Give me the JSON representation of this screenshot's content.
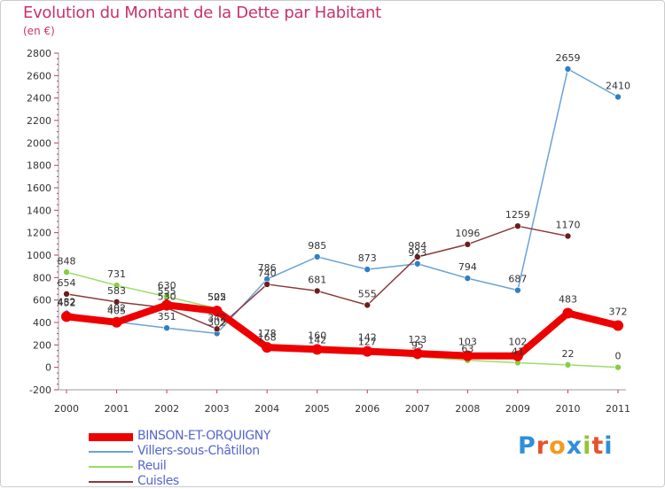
{
  "header": {
    "title": "Evolution du Montant de la Dette par Habitant",
    "unit": "(en €)"
  },
  "colors": {
    "title": "#c8336b",
    "axis_text": "#333333",
    "grid": "#dddddd",
    "legend_text": "#5566cc"
  },
  "logo": {
    "letters": [
      "P",
      "r",
      "o",
      "x",
      "i",
      "t",
      "i"
    ],
    "colors": [
      "#2f8fd8",
      "#e5522e",
      "#f39a1f",
      "#2f8fd8",
      "#93c43d",
      "#e5522e",
      "#2f8fd8"
    ]
  },
  "chart_data": {
    "type": "line",
    "title": "Evolution du Montant de la Dette par Habitant",
    "ylabel": "(en €)",
    "xlabel": "",
    "x": [
      2000,
      2001,
      2002,
      2003,
      2004,
      2005,
      2006,
      2007,
      2008,
      2009,
      2010,
      2011
    ],
    "ylim": [
      -200,
      2800
    ],
    "yticks": [
      -200,
      0,
      200,
      400,
      600,
      800,
      1000,
      1200,
      1400,
      1600,
      1800,
      2000,
      2200,
      2400,
      2600,
      2800
    ],
    "grid": false,
    "legend_position": "bottom-left",
    "series": [
      {
        "name": "BINSON-ET-ORQUIGNY",
        "color": "#ee0000",
        "marker": "#ee0000",
        "width": 8,
        "values": [
          452,
          402,
          555,
          502,
          178,
          160,
          142,
          123,
          103,
          102,
          483,
          372
        ]
      },
      {
        "name": "Villers-sous-Châtillon",
        "color": "#6aa3d5",
        "marker": "#2f7fc4",
        "width": 1.5,
        "values": [
          482,
          405,
          351,
          302,
          786,
          985,
          873,
          923,
          794,
          687,
          2659,
          2410
        ]
      },
      {
        "name": "Reuil",
        "color": "#99dd66",
        "marker": "#88cc44",
        "width": 1.5,
        "values": [
          848,
          731,
          630,
          525,
          168,
          142,
          127,
          95,
          63,
          41,
          22,
          0
        ]
      },
      {
        "name": "Cuisles",
        "color": "#8b3a3a",
        "marker": "#6b1e1e",
        "width": 1.5,
        "values": [
          654,
          583,
          530,
          342,
          740,
          681,
          555,
          984,
          1096,
          1259,
          1170,
          null
        ]
      }
    ]
  }
}
